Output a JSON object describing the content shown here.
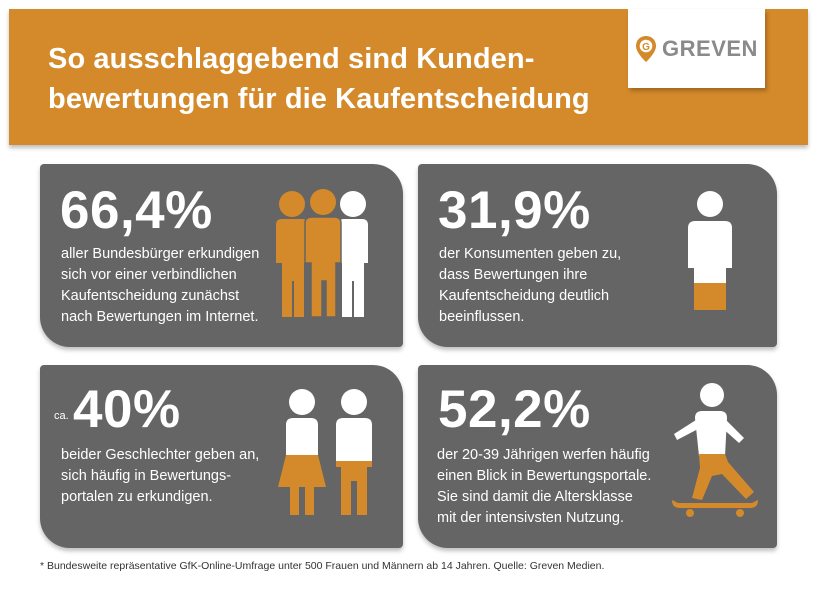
{
  "header": {
    "title_lines": [
      "So ausschlaggebend sind Kunden-",
      "bewertungen für die Kaufentscheidung"
    ],
    "logo_text": "GREVEN",
    "logo_mark": "G"
  },
  "colors": {
    "orange": "#d48a2a",
    "card_gray": "#656565",
    "white": "#ffffff",
    "logo_gray": "#8a8a8a"
  },
  "cards": [
    {
      "stat": "66,4%",
      "lines": [
        "aller Bundesbürger erkundigen",
        "sich vor einer verbindlichen",
        "Kaufentscheidung zunächst",
        "nach Bewertungen im Internet."
      ],
      "icon": "three-people-icon"
    },
    {
      "stat": "31,9%",
      "lines": [
        "der Konsumenten geben zu,",
        "dass Bewertungen ihre",
        "Kaufentscheidung deutlich",
        "beeinflussen."
      ],
      "icon": "person-partial-fill-icon"
    },
    {
      "prefix": "ca.",
      "stat": "40%",
      "lines": [
        "beider Geschlechter geben an,",
        "sich häufig in Bewertungs-",
        "portalen zu erkundigen."
      ],
      "icon": "woman-man-icon"
    },
    {
      "stat": "52,2%",
      "lines": [
        "der 20-39 Jährigen werfen häufig",
        "einen Blick in Bewertungsportale.",
        "Sie sind damit die Altersklasse",
        "mit der intensivsten Nutzung."
      ],
      "icon": "skateboarder-icon"
    }
  ],
  "footnote": "* Bundesweite repräsentative GfK-Online-Umfrage unter 500 Frauen und Männern ab 14 Jahren. Quelle: Greven Medien."
}
